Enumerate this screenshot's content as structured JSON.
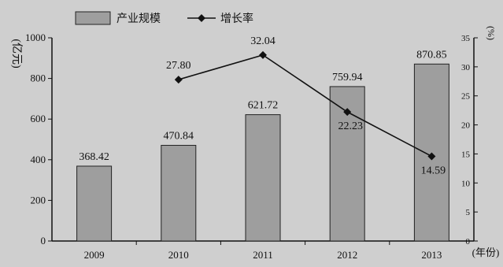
{
  "chart_data": {
    "type": "bar+line",
    "categories": [
      "2009",
      "2010",
      "2011",
      "2012",
      "2013"
    ],
    "series": [
      {
        "name": "产业规模",
        "type": "bar",
        "axis": "left",
        "values": [
          368.42,
          470.84,
          621.72,
          759.94,
          870.85
        ],
        "labels": [
          "368.42",
          "470.84",
          "621.72",
          "759.94",
          "870.85"
        ]
      },
      {
        "name": "增长率",
        "type": "line",
        "axis": "right",
        "values": [
          null,
          27.8,
          32.04,
          22.23,
          14.59
        ],
        "labels": [
          "",
          "27.80",
          "32.04",
          "22.23",
          "14.59"
        ]
      }
    ],
    "y_left": {
      "label": "(亿元)",
      "range": [
        0,
        1000
      ],
      "ticks": [
        "0",
        "200",
        "400",
        "600",
        "800",
        "1000"
      ]
    },
    "y_right": {
      "label": "(%)",
      "range": [
        0,
        35
      ],
      "ticks": [
        "0",
        "5",
        "10",
        "15",
        "20",
        "25",
        "30",
        "35"
      ]
    },
    "x_unit": "(年份)",
    "legend_position": "top-left",
    "grid": false,
    "colors": {
      "bar_fill": "#9e9e9e",
      "bar_stroke": "#222222",
      "line": "#111111",
      "background": "#cfcfcf"
    }
  }
}
